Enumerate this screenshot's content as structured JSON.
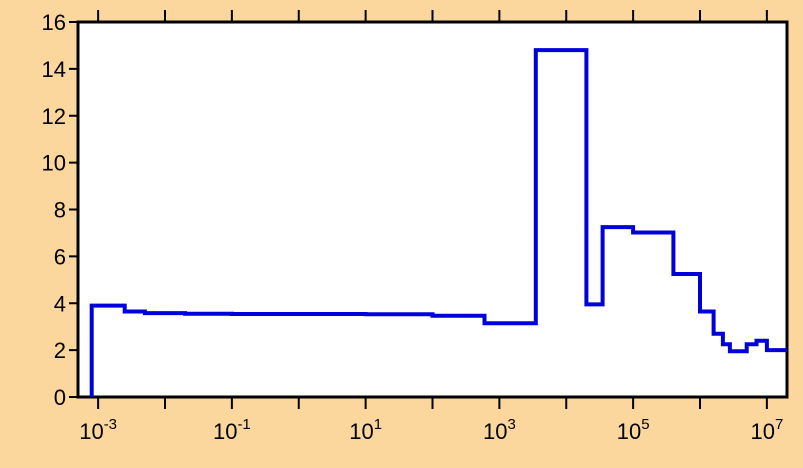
{
  "colors": {
    "background": "#fbd79d",
    "plot_area": "#ffffff",
    "series": "#0000dd",
    "axes": "#000000"
  },
  "chart_data": {
    "type": "line",
    "style": "step",
    "title": "",
    "xlabel": "",
    "ylabel": "",
    "x_scale": "log",
    "xlim": [
      0.0005,
      20000000
    ],
    "ylim": [
      0,
      16
    ],
    "grid": false,
    "legend": "none",
    "y_ticks": [
      "0",
      "2",
      "4",
      "6",
      "8",
      "10",
      "12",
      "14",
      "16"
    ],
    "x_ticks": [
      {
        "base": "10",
        "exp": "-3",
        "value": 0.001
      },
      {
        "base": "10",
        "exp": "-1",
        "value": 0.1
      },
      {
        "base": "10",
        "exp": "1",
        "value": 10
      },
      {
        "base": "10",
        "exp": "3",
        "value": 1000
      },
      {
        "base": "10",
        "exp": "5",
        "value": 100000
      },
      {
        "base": "10",
        "exp": "7",
        "value": 10000000
      }
    ],
    "x_minor_ticks": [
      0.01,
      1,
      100,
      10000,
      1000000
    ],
    "series": [
      {
        "name": "",
        "x": [
          0.0008,
          0.0025,
          0.005,
          0.02,
          0.1,
          1,
          10,
          100,
          600,
          3500,
          20000,
          35000,
          100000,
          400000,
          1000000,
          1600000,
          2200000,
          2800000,
          5000000,
          7000000,
          10000000,
          20000000
        ],
        "y": [
          3.9,
          3.65,
          3.58,
          3.55,
          3.54,
          3.54,
          3.53,
          3.47,
          3.15,
          14.8,
          3.95,
          7.25,
          7.02,
          5.25,
          3.65,
          2.7,
          2.25,
          1.95,
          2.25,
          2.4,
          2.0,
          2.0
        ]
      }
    ]
  }
}
